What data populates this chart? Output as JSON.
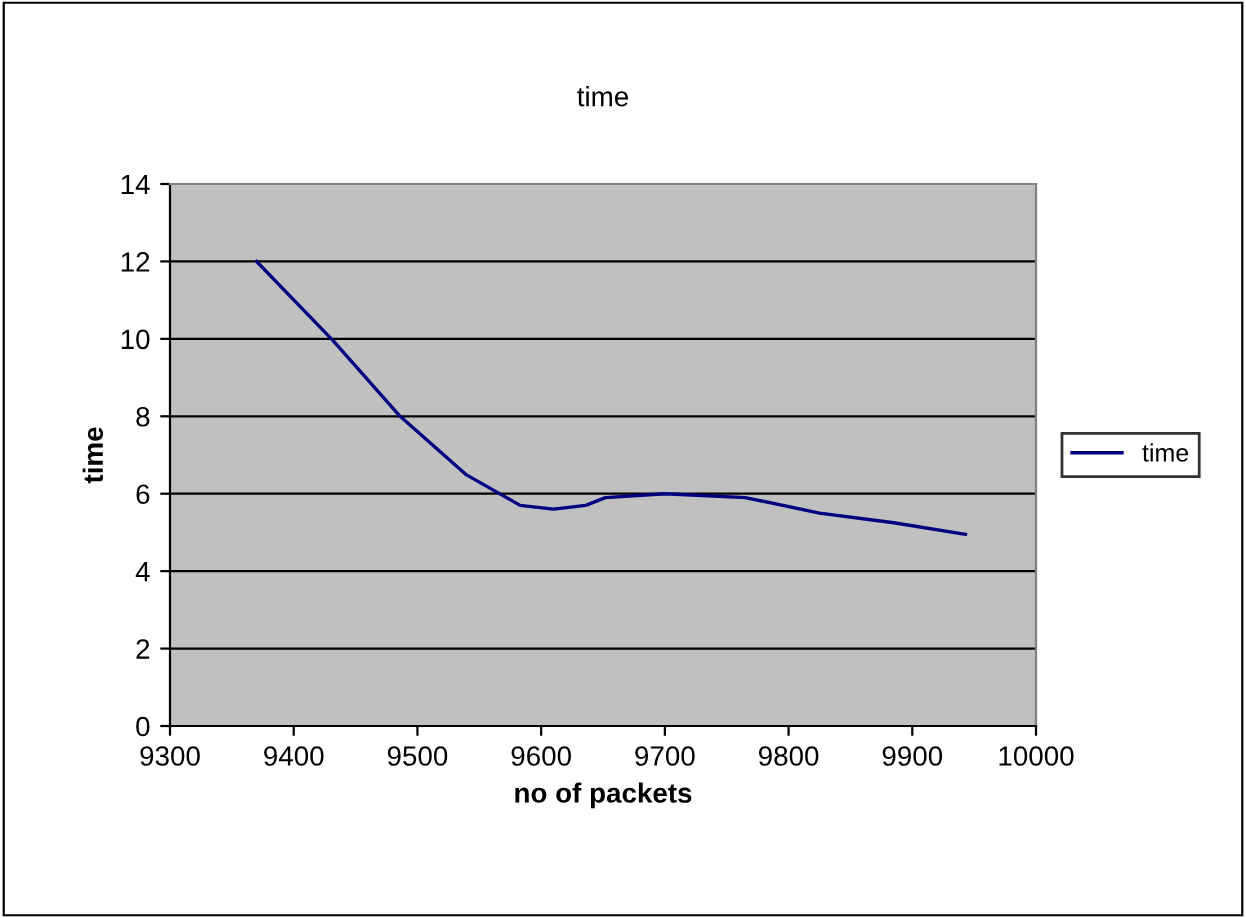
{
  "chart_data": {
    "type": "line",
    "title": "time",
    "xlabel": "no of packets",
    "ylabel": "time",
    "series": [
      {
        "name": "time",
        "color": "#000080",
        "x": [
          9370,
          9432,
          9486,
          9539,
          9583,
          9610,
          9636,
          9652,
          9700,
          9765,
          9825,
          9885,
          9943
        ],
        "values": [
          12,
          9.95,
          8.0,
          6.5,
          5.7,
          5.6,
          5.7,
          5.9,
          6.0,
          5.9,
          5.5,
          5.25,
          4.95
        ]
      }
    ],
    "xlim": [
      9300,
      10000
    ],
    "xticks": [
      9300,
      9400,
      9500,
      9600,
      9700,
      9800,
      9900,
      10000
    ],
    "ylim": [
      0,
      14
    ],
    "yticks": [
      0,
      2,
      4,
      6,
      8,
      10,
      12,
      14
    ],
    "grid": "y",
    "legend": "right",
    "marker": "none",
    "line_style": "solid"
  }
}
